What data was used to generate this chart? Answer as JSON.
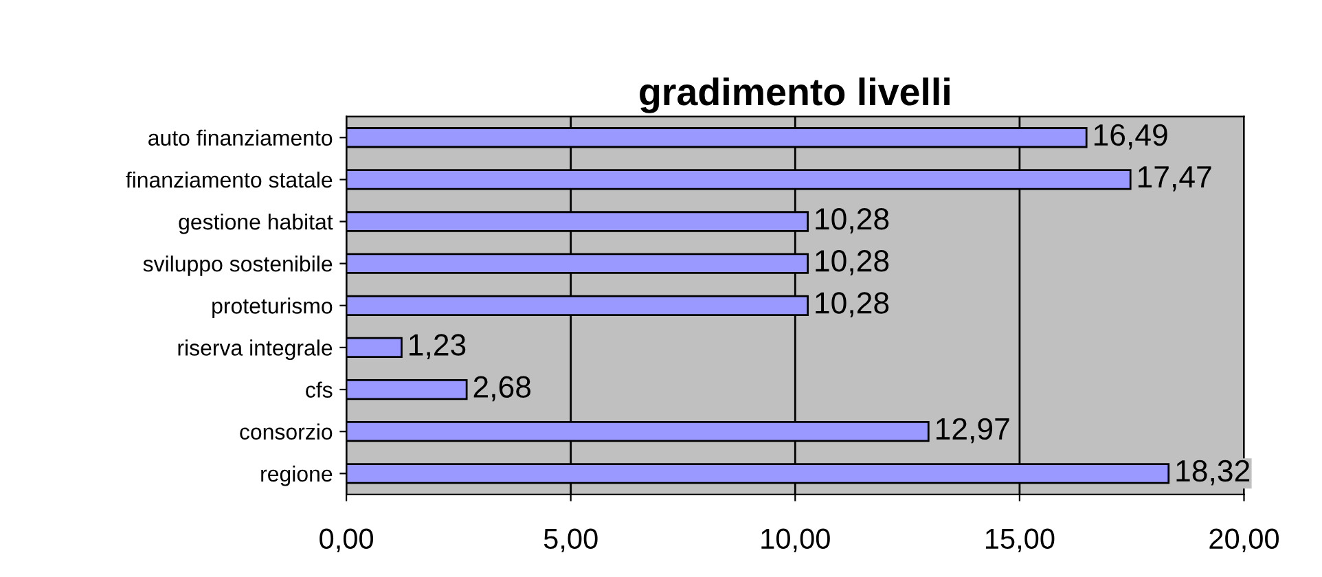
{
  "chart_data": {
    "type": "bar",
    "orientation": "horizontal",
    "title": "gradimento livelli",
    "categories": [
      "auto finanziamento",
      "finanziamento statale",
      "gestione habitat",
      "sviluppo sostenibile",
      "proteturismo",
      "riserva integrale",
      "cfs",
      "consorzio",
      "regione"
    ],
    "values": [
      16.49,
      17.47,
      10.28,
      10.28,
      10.28,
      1.23,
      2.68,
      12.97,
      18.32
    ],
    "value_labels": [
      "16,49",
      "17,47",
      "10,28",
      "10,28",
      "10,28",
      "1,23",
      "2,68",
      "12,97",
      "18,32"
    ],
    "color": "#9999ff",
    "xlim": [
      0,
      20
    ],
    "xticks": [
      {
        "value": 0,
        "label": "0,00"
      },
      {
        "value": 5,
        "label": "5,00"
      },
      {
        "value": 10,
        "label": "10,00"
      },
      {
        "value": 15,
        "label": "15,00"
      },
      {
        "value": 20,
        "label": "20,00"
      }
    ],
    "grid": "x"
  }
}
